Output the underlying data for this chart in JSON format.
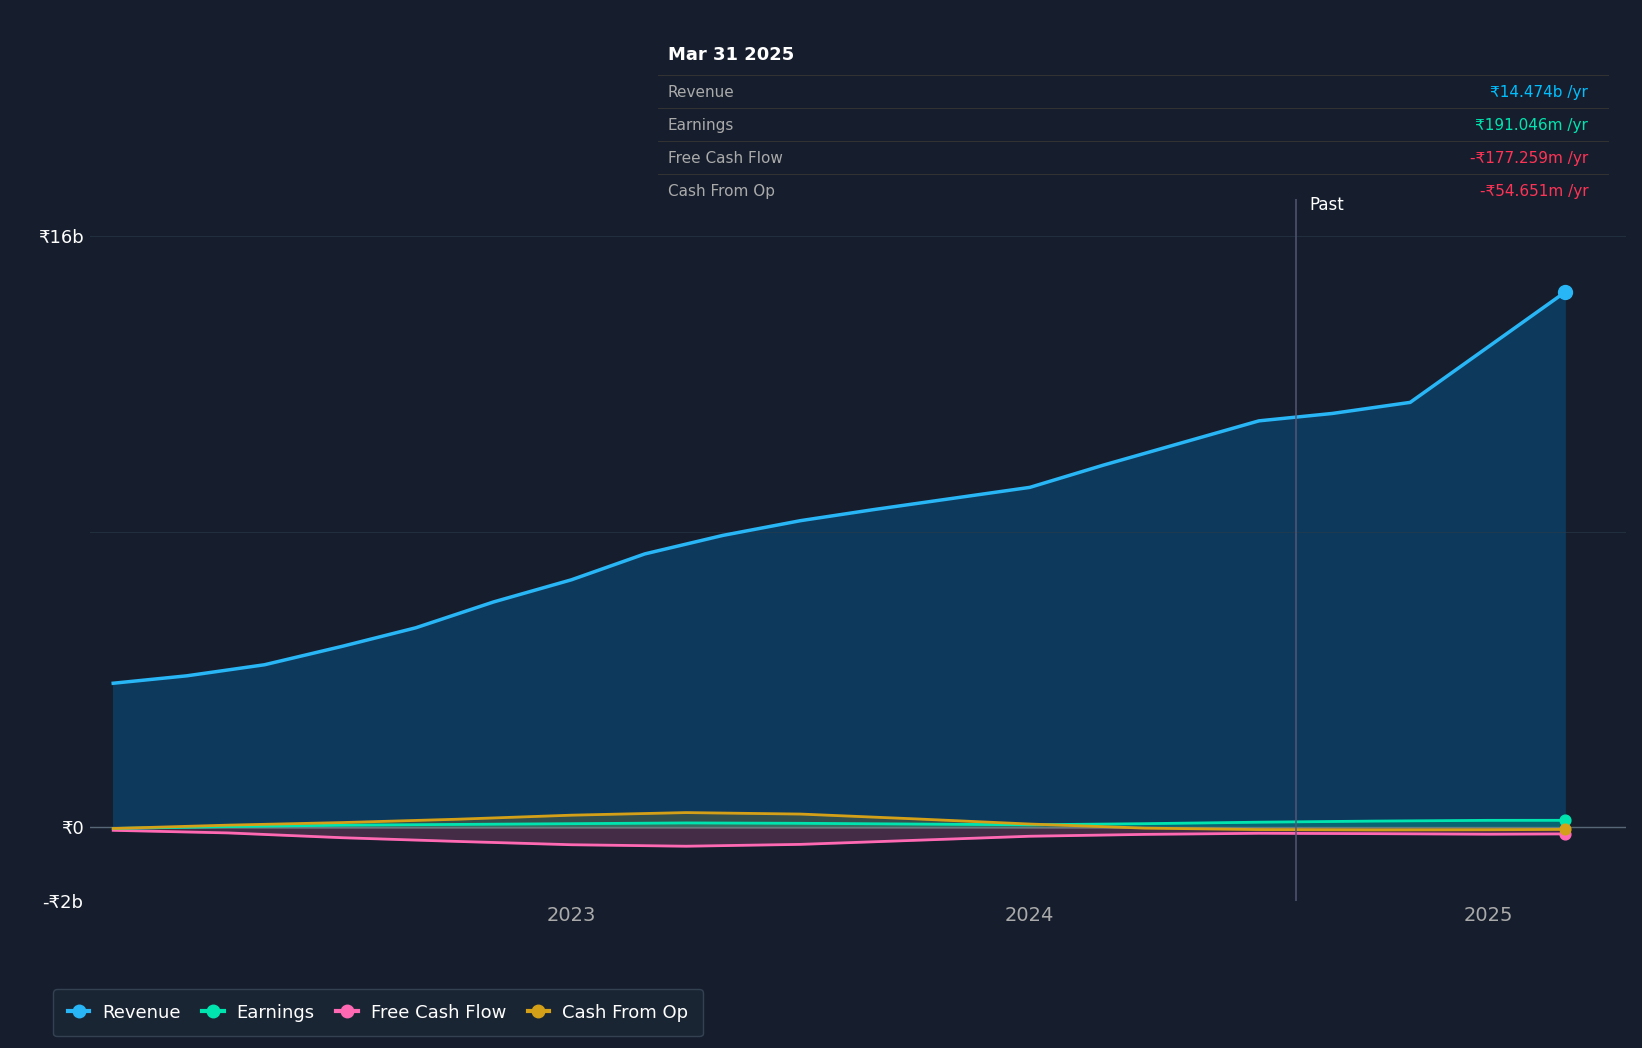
{
  "background_color": "#161e2d",
  "plot_bg_color": "#161e2d",
  "tooltip_bg": "#0d1117",
  "ylabel_16b": "₹16b",
  "ylabel_0": "₹0",
  "ylabel_neg2b": "-₹2b",
  "x_ticks": [
    2023,
    2024,
    2025
  ],
  "divider_x": 2024.58,
  "past_label": "Past",
  "tooltip_header": "Mar 31 2025",
  "tooltip_rows": [
    {
      "label": "Revenue",
      "value": "₹14.474b /yr",
      "value_color": "#00bfff"
    },
    {
      "label": "Earnings",
      "value": "₹191.046m /yr",
      "value_color": "#00e5b0"
    },
    {
      "label": "Free Cash Flow",
      "value": "-₹177.259m /yr",
      "value_color": "#ff3355"
    },
    {
      "label": "Cash From Op",
      "value": "-₹54.651m /yr",
      "value_color": "#ff3355"
    }
  ],
  "revenue_x": [
    2022.0,
    2022.16,
    2022.33,
    2022.5,
    2022.66,
    2022.83,
    2023.0,
    2023.16,
    2023.33,
    2023.5,
    2023.66,
    2023.83,
    2024.0,
    2024.16,
    2024.33,
    2024.5,
    2024.66,
    2024.83,
    2025.0,
    2025.167
  ],
  "revenue_y": [
    3900,
    4100,
    4400,
    4900,
    5400,
    6100,
    6700,
    7400,
    7900,
    8300,
    8600,
    8900,
    9200,
    9800,
    10400,
    11000,
    11200,
    11500,
    13000,
    14474
  ],
  "revenue_color": "#29b6f6",
  "revenue_fill": "#0d3a5c",
  "earnings_x": [
    2022.0,
    2022.25,
    2022.5,
    2022.75,
    2023.0,
    2023.25,
    2023.5,
    2023.75,
    2024.0,
    2024.25,
    2024.5,
    2024.75,
    2025.0,
    2025.167
  ],
  "earnings_y": [
    -30,
    20,
    60,
    80,
    100,
    120,
    110,
    90,
    70,
    100,
    140,
    170,
    190,
    191
  ],
  "earnings_color": "#00e5b0",
  "fcf_x": [
    2022.0,
    2022.25,
    2022.5,
    2022.75,
    2023.0,
    2023.25,
    2023.5,
    2023.75,
    2024.0,
    2024.25,
    2024.5,
    2024.75,
    2025.0,
    2025.167
  ],
  "fcf_y": [
    -80,
    -150,
    -280,
    -380,
    -470,
    -510,
    -460,
    -350,
    -240,
    -190,
    -160,
    -170,
    -185,
    -177
  ],
  "fcf_color": "#ff69b4",
  "cfo_x": [
    2022.0,
    2022.25,
    2022.5,
    2022.75,
    2023.0,
    2023.25,
    2023.5,
    2023.75,
    2024.0,
    2024.25,
    2024.5,
    2024.75,
    2025.0,
    2025.167
  ],
  "cfo_y": [
    -30,
    60,
    130,
    220,
    330,
    400,
    360,
    230,
    90,
    -20,
    -60,
    -70,
    -65,
    -55
  ],
  "cfo_color": "#d4a017",
  "ylim": [
    -2000,
    17000
  ],
  "xlim": [
    2021.95,
    2025.3
  ],
  "grid_color": "#2a3a4a",
  "legend_items": [
    {
      "label": "Revenue",
      "color": "#29b6f6"
    },
    {
      "label": "Earnings",
      "color": "#00e5b0"
    },
    {
      "label": "Free Cash Flow",
      "color": "#ff69b4"
    },
    {
      "label": "Cash From Op",
      "color": "#d4a017"
    }
  ]
}
